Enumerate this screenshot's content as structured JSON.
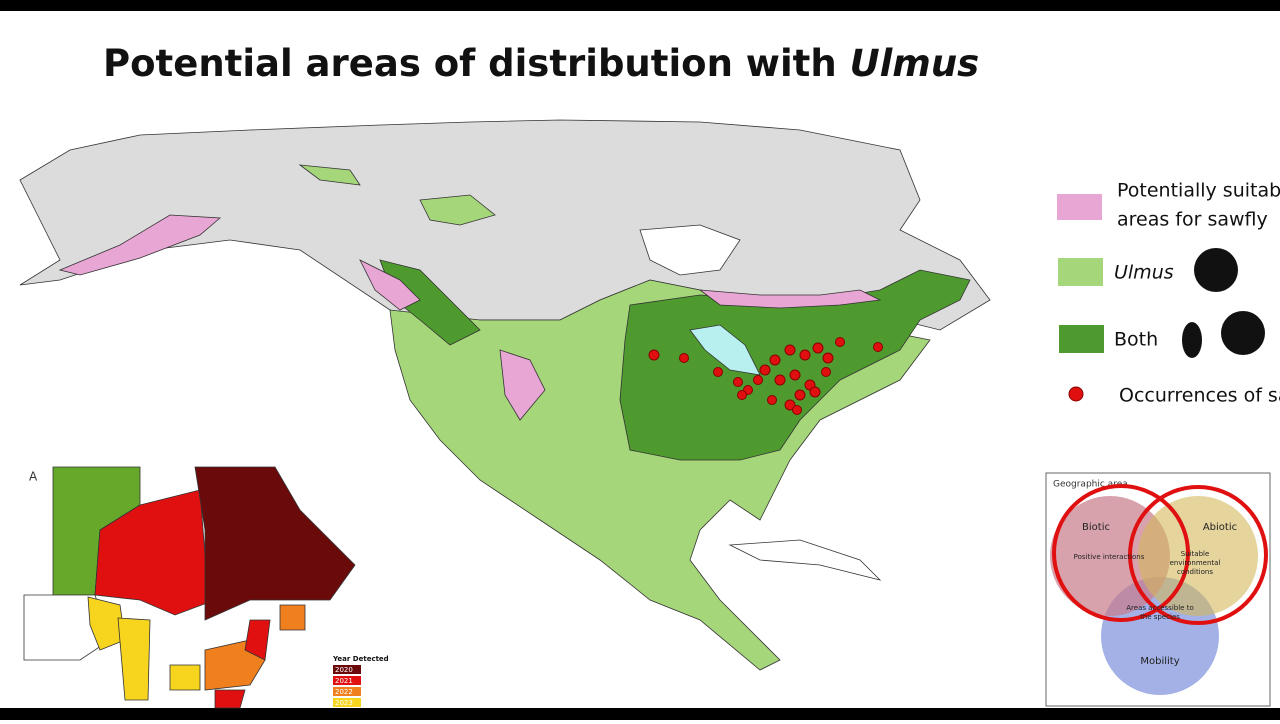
{
  "slide": {
    "title": {
      "text": "Potential areas of distribution with ",
      "italic": "Ulmus"
    },
    "legend": [
      {
        "lines": [
          "Potentially suitab",
          "areas for sawfly"
        ]
      },
      {
        "label": "Ulmus"
      },
      {
        "label": "Both"
      },
      {
        "label": "Occurrences of sa"
      }
    ],
    "inset_map": {
      "panel_label": "A",
      "legend_title": "Year Detected",
      "years": [
        {
          "label": "2020",
          "color": "#6b0a0a"
        },
        {
          "label": "2021",
          "color": "#e01010"
        },
        {
          "label": "2022",
          "color": "#f07f1e"
        },
        {
          "label": "2023",
          "color": "#f7d51e"
        }
      ]
    },
    "venn": {
      "title": "Geographic area",
      "circles": [
        {
          "name": "Biotic",
          "desc": "Positive interactions"
        },
        {
          "name": "Abiotic",
          "desc": "Suitable environmental conditions"
        },
        {
          "name": "Mobility",
          "desc": "Areas accessible to the species"
        }
      ]
    }
  }
}
